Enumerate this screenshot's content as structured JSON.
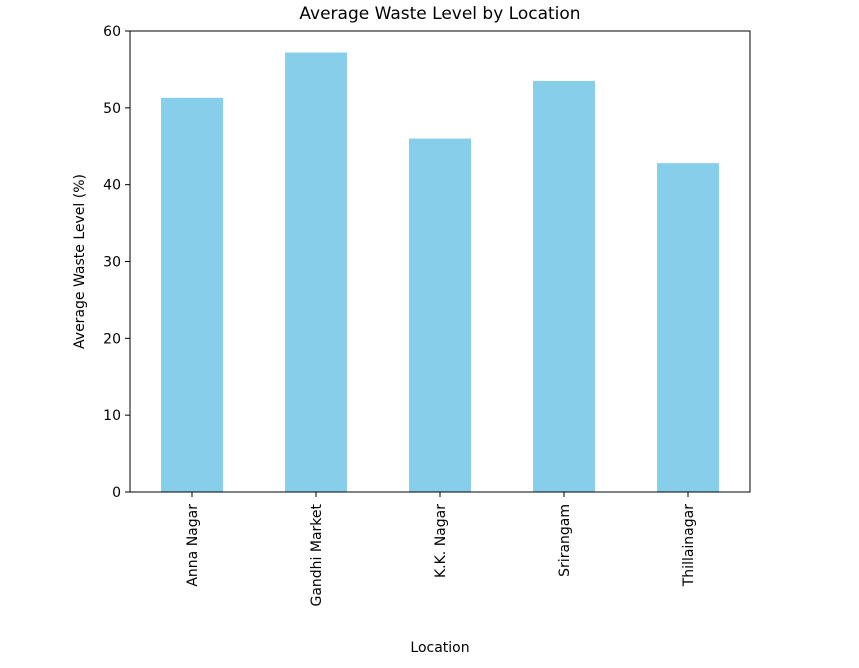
{
  "chart_data": {
    "type": "bar",
    "title": "Average Waste Level by Location",
    "xlabel": "Location",
    "ylabel": "Average Waste Level (%)",
    "categories": [
      "Anna Nagar",
      "Gandhi Market",
      "K.K. Nagar",
      "Srirangam",
      "Thillainagar"
    ],
    "values": [
      51.3,
      57.2,
      46.0,
      53.5,
      42.8
    ],
    "ylim": [
      0,
      60
    ],
    "yticks": [
      0,
      10,
      20,
      30,
      40,
      50,
      60
    ],
    "bar_color": "#87ceeb",
    "axis_color": "#000000",
    "grid": false,
    "legend": "none"
  }
}
